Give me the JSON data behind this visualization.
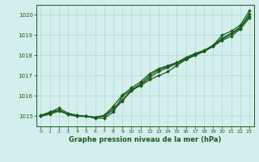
{
  "x": [
    0,
    1,
    2,
    3,
    4,
    5,
    6,
    7,
    8,
    9,
    10,
    11,
    12,
    13,
    14,
    15,
    16,
    17,
    18,
    19,
    20,
    21,
    22,
    23
  ],
  "line1": [
    1015.0,
    1015.2,
    1015.3,
    1015.1,
    1015.0,
    1015.0,
    1014.9,
    1014.9,
    1015.2,
    1016.0,
    1016.3,
    1016.5,
    1016.8,
    1017.0,
    1017.2,
    1017.5,
    1017.8,
    1018.0,
    1018.2,
    1018.5,
    1019.0,
    1019.2,
    1019.5,
    1020.2
  ],
  "line2": [
    1015.05,
    1015.2,
    1015.4,
    1015.15,
    1015.05,
    1015.0,
    1014.95,
    1015.0,
    1015.4,
    1015.8,
    1016.3,
    1016.6,
    1017.0,
    1017.3,
    1017.45,
    1017.65,
    1017.9,
    1018.1,
    1018.25,
    1018.5,
    1018.85,
    1019.1,
    1019.4,
    1020.05
  ],
  "line3": [
    1015.0,
    1015.15,
    1015.3,
    1015.1,
    1015.0,
    1015.0,
    1014.95,
    1015.05,
    1015.5,
    1016.05,
    1016.4,
    1016.7,
    1017.1,
    1017.35,
    1017.5,
    1017.65,
    1017.85,
    1018.05,
    1018.2,
    1018.45,
    1018.8,
    1019.05,
    1019.35,
    1019.95
  ],
  "line4": [
    1015.0,
    1015.1,
    1015.25,
    1015.1,
    1015.0,
    1015.0,
    1014.95,
    1015.0,
    1015.3,
    1015.75,
    1016.25,
    1016.55,
    1016.9,
    1017.2,
    1017.4,
    1017.6,
    1017.8,
    1018.05,
    1018.2,
    1018.45,
    1018.75,
    1018.95,
    1019.3,
    1019.85
  ],
  "line_color": "#1a5c1a",
  "bg_color": "#d4eeed",
  "grid_color": "#b0d8d0",
  "xlabel": "Graphe pression niveau de la mer (hPa)",
  "ylim": [
    1014.5,
    1020.5
  ],
  "yticks": [
    1015,
    1016,
    1017,
    1018,
    1019,
    1020
  ],
  "xtick_labels": [
    "0",
    "1",
    "2",
    "3",
    "4",
    "5",
    "6",
    "7",
    "8",
    "9",
    "10",
    "11",
    "12",
    "13",
    "14",
    "15",
    "16",
    "17",
    "18",
    "19",
    "20",
    "21",
    "22",
    "23"
  ],
  "marker": "D",
  "markersize": 2.0,
  "linewidth": 0.9
}
